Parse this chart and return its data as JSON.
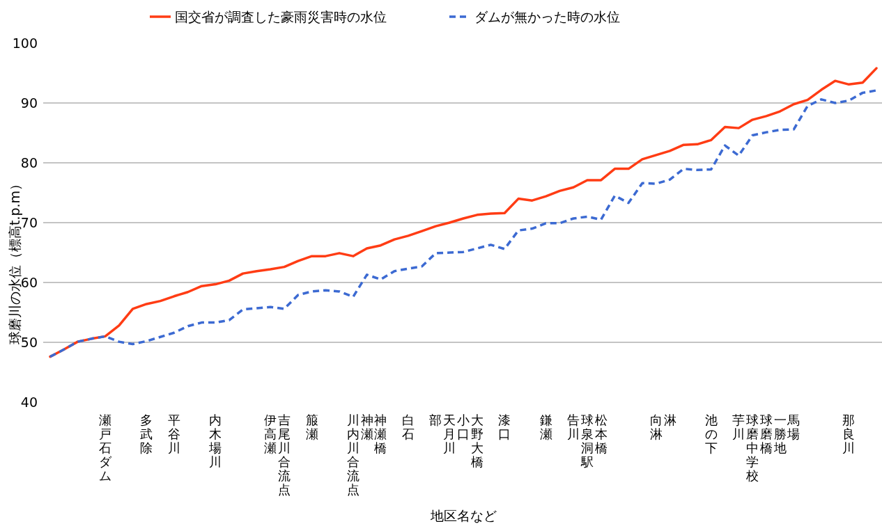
{
  "chart_data": {
    "type": "line",
    "xlabel": "地区名など",
    "ylabel": "球磨川の水位（標高t.p.m）",
    "legend": "top",
    "grid": "y",
    "categories": [
      null,
      null,
      null,
      null,
      "瀬戸石ダム",
      null,
      null,
      "多武除",
      null,
      "平谷川",
      null,
      null,
      "内木場川",
      null,
      null,
      null,
      "伊高瀬",
      "吉尾川合流点",
      null,
      "箙瀬",
      null,
      null,
      "川内川合流点",
      "神瀬",
      "神瀬橋",
      null,
      "白石",
      null,
      "部",
      "天月川",
      "小口",
      "大野大橋",
      null,
      "漆口",
      null,
      null,
      "鎌瀬",
      null,
      "告川",
      "球泉洞駅",
      "松本橋",
      null,
      null,
      null,
      "向淋",
      "淋",
      null,
      null,
      "池の下",
      null,
      "芋川",
      "球磨中学校",
      "球磨橋",
      "一勝地",
      "馬場",
      null,
      null,
      null,
      "那良川",
      null,
      null
    ],
    "ylim": [
      40,
      100
    ],
    "yticks": [
      40,
      50,
      60,
      70,
      80,
      90,
      100
    ],
    "series": [
      {
        "name": "国交省が調査した豪雨災害時の水位",
        "color": "#ff3c14",
        "line_style": "solid",
        "values": [
          47.6,
          48.8,
          50.1,
          50.6,
          51.0,
          52.8,
          55.6,
          56.4,
          56.9,
          57.7,
          58.4,
          59.4,
          59.7,
          60.3,
          61.5,
          61.9,
          62.2,
          62.6,
          63.6,
          64.4,
          64.4,
          64.9,
          64.4,
          65.7,
          66.2,
          67.2,
          67.8,
          68.6,
          69.4,
          70.0,
          70.7,
          71.3,
          71.5,
          71.6,
          74.0,
          73.7,
          74.4,
          75.3,
          75.9,
          77.1,
          77.1,
          79.0,
          79.0,
          80.6,
          81.3,
          82.0,
          83.0,
          83.1,
          83.8,
          86.0,
          85.8,
          87.2,
          87.8,
          88.6,
          89.8,
          90.5,
          92.2,
          93.7,
          93.1,
          93.4,
          95.8
        ]
      },
      {
        "name": "ダムが無かった時の水位",
        "color": "#3c6ad2",
        "line_style": "dashed",
        "values": [
          47.6,
          48.8,
          50.1,
          50.6,
          51.0,
          50.1,
          49.7,
          50.2,
          50.9,
          51.6,
          52.7,
          53.3,
          53.3,
          53.7,
          55.5,
          55.7,
          55.9,
          55.6,
          57.9,
          58.5,
          58.7,
          58.5,
          57.6,
          61.3,
          60.5,
          61.9,
          62.3,
          62.7,
          64.9,
          65.0,
          65.1,
          65.7,
          66.3,
          65.6,
          68.7,
          69.0,
          69.9,
          69.9,
          70.7,
          71.0,
          70.5,
          74.5,
          73.3,
          76.6,
          76.5,
          77.2,
          79.0,
          78.8,
          78.9,
          82.9,
          81.2,
          84.6,
          85.1,
          85.5,
          85.6,
          89.5,
          90.6,
          90.0,
          90.4,
          91.7,
          92.1
        ]
      }
    ]
  }
}
